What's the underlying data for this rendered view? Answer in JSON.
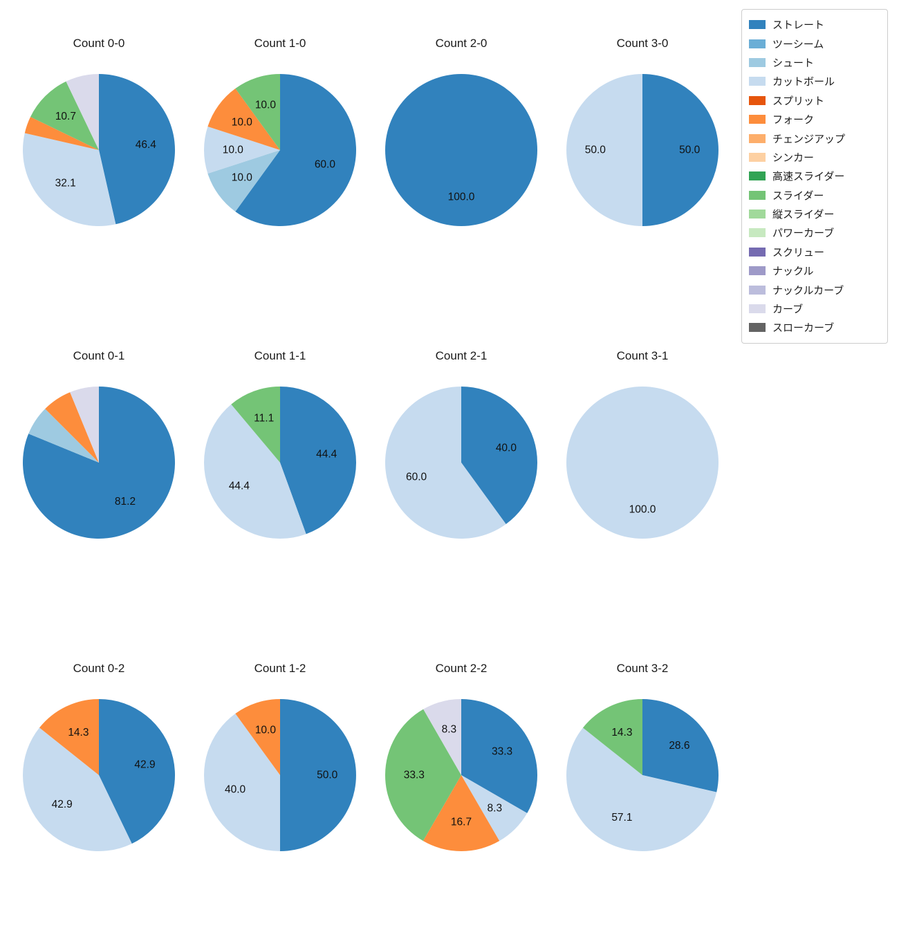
{
  "page": {
    "background": "#ffffff",
    "text_color": "#1a1a1a"
  },
  "legend": {
    "items": [
      {
        "label": "ストレート",
        "color": "#3182bd"
      },
      {
        "label": "ツーシーム",
        "color": "#6baed6"
      },
      {
        "label": "シュート",
        "color": "#9ecae1"
      },
      {
        "label": "カットボール",
        "color": "#c6dbef"
      },
      {
        "label": "スプリット",
        "color": "#e6550d"
      },
      {
        "label": "フォーク",
        "color": "#fd8d3c"
      },
      {
        "label": "チェンジアップ",
        "color": "#fdae6b"
      },
      {
        "label": "シンカー",
        "color": "#fdd0a2"
      },
      {
        "label": "高速スライダー",
        "color": "#31a354"
      },
      {
        "label": "スライダー",
        "color": "#74c476"
      },
      {
        "label": "縦スライダー",
        "color": "#a1d99b"
      },
      {
        "label": "パワーカーブ",
        "color": "#c7e9c0"
      },
      {
        "label": "スクリュー",
        "color": "#756bb1"
      },
      {
        "label": "ナックル",
        "color": "#9e9ac8"
      },
      {
        "label": "ナックルカーブ",
        "color": "#bcbddc"
      },
      {
        "label": "カーブ",
        "color": "#dadaeb"
      },
      {
        "label": "スローカーブ",
        "color": "#636363"
      }
    ]
  },
  "chart_data": [
    {
      "type": "pie",
      "title": "Count 0-0",
      "start_angle": 90,
      "direction": "clockwise",
      "slices": [
        {
          "name": "ストレート",
          "value": 46.4,
          "label": "46.4"
        },
        {
          "name": "カットボール",
          "value": 32.1,
          "label": "32.1"
        },
        {
          "name": "フォーク",
          "value": 3.6,
          "label": ""
        },
        {
          "name": "スライダー",
          "value": 10.7,
          "label": "10.7"
        },
        {
          "name": "カーブ",
          "value": 7.1,
          "label": ""
        }
      ]
    },
    {
      "type": "pie",
      "title": "Count 1-0",
      "start_angle": 90,
      "direction": "clockwise",
      "slices": [
        {
          "name": "ストレート",
          "value": 60.0,
          "label": "60.0"
        },
        {
          "name": "シュート",
          "value": 10.0,
          "label": "10.0"
        },
        {
          "name": "カットボール",
          "value": 10.0,
          "label": "10.0"
        },
        {
          "name": "フォーク",
          "value": 10.0,
          "label": "10.0"
        },
        {
          "name": "スライダー",
          "value": 10.0,
          "label": "10.0"
        }
      ]
    },
    {
      "type": "pie",
      "title": "Count 2-0",
      "start_angle": 90,
      "direction": "clockwise",
      "slices": [
        {
          "name": "ストレート",
          "value": 100.0,
          "label": "100.0"
        }
      ]
    },
    {
      "type": "pie",
      "title": "Count 3-0",
      "start_angle": 90,
      "direction": "clockwise",
      "slices": [
        {
          "name": "ストレート",
          "value": 50.0,
          "label": "50.0"
        },
        {
          "name": "カットボール",
          "value": 50.0,
          "label": "50.0"
        }
      ]
    },
    {
      "type": "pie",
      "title": "Count 0-1",
      "start_angle": 90,
      "direction": "clockwise",
      "slices": [
        {
          "name": "ストレート",
          "value": 81.2,
          "label": "81.2"
        },
        {
          "name": "シュート",
          "value": 6.3,
          "label": ""
        },
        {
          "name": "フォーク",
          "value": 6.3,
          "label": ""
        },
        {
          "name": "カーブ",
          "value": 6.2,
          "label": ""
        }
      ]
    },
    {
      "type": "pie",
      "title": "Count 1-1",
      "start_angle": 90,
      "direction": "clockwise",
      "slices": [
        {
          "name": "ストレート",
          "value": 44.4,
          "label": "44.4"
        },
        {
          "name": "カットボール",
          "value": 44.4,
          "label": "44.4"
        },
        {
          "name": "スライダー",
          "value": 11.1,
          "label": "11.1"
        }
      ]
    },
    {
      "type": "pie",
      "title": "Count 2-1",
      "start_angle": 90,
      "direction": "clockwise",
      "slices": [
        {
          "name": "ストレート",
          "value": 40.0,
          "label": "40.0"
        },
        {
          "name": "カットボール",
          "value": 60.0,
          "label": "60.0"
        }
      ]
    },
    {
      "type": "pie",
      "title": "Count 3-1",
      "start_angle": 90,
      "direction": "clockwise",
      "slices": [
        {
          "name": "カットボール",
          "value": 100.0,
          "label": "100.0"
        }
      ]
    },
    {
      "type": "pie",
      "title": "Count 0-2",
      "start_angle": 90,
      "direction": "clockwise",
      "slices": [
        {
          "name": "ストレート",
          "value": 42.9,
          "label": "42.9"
        },
        {
          "name": "カットボール",
          "value": 42.9,
          "label": "42.9"
        },
        {
          "name": "フォーク",
          "value": 14.3,
          "label": "14.3"
        }
      ]
    },
    {
      "type": "pie",
      "title": "Count 1-2",
      "start_angle": 90,
      "direction": "clockwise",
      "slices": [
        {
          "name": "ストレート",
          "value": 50.0,
          "label": "50.0"
        },
        {
          "name": "カットボール",
          "value": 40.0,
          "label": "40.0"
        },
        {
          "name": "フォーク",
          "value": 10.0,
          "label": "10.0"
        }
      ]
    },
    {
      "type": "pie",
      "title": "Count 2-2",
      "start_angle": 90,
      "direction": "clockwise",
      "slices": [
        {
          "name": "ストレート",
          "value": 33.3,
          "label": "33.3"
        },
        {
          "name": "カットボール",
          "value": 8.3,
          "label": "8.3"
        },
        {
          "name": "フォーク",
          "value": 16.7,
          "label": "16.7"
        },
        {
          "name": "スライダー",
          "value": 33.3,
          "label": "33.3"
        },
        {
          "name": "カーブ",
          "value": 8.3,
          "label": "8.3"
        }
      ]
    },
    {
      "type": "pie",
      "title": "Count 3-2",
      "start_angle": 90,
      "direction": "clockwise",
      "slices": [
        {
          "name": "ストレート",
          "value": 28.6,
          "label": "28.6"
        },
        {
          "name": "カットボール",
          "value": 57.1,
          "label": "57.1"
        },
        {
          "name": "スライダー",
          "value": 14.3,
          "label": "14.3"
        }
      ]
    }
  ]
}
